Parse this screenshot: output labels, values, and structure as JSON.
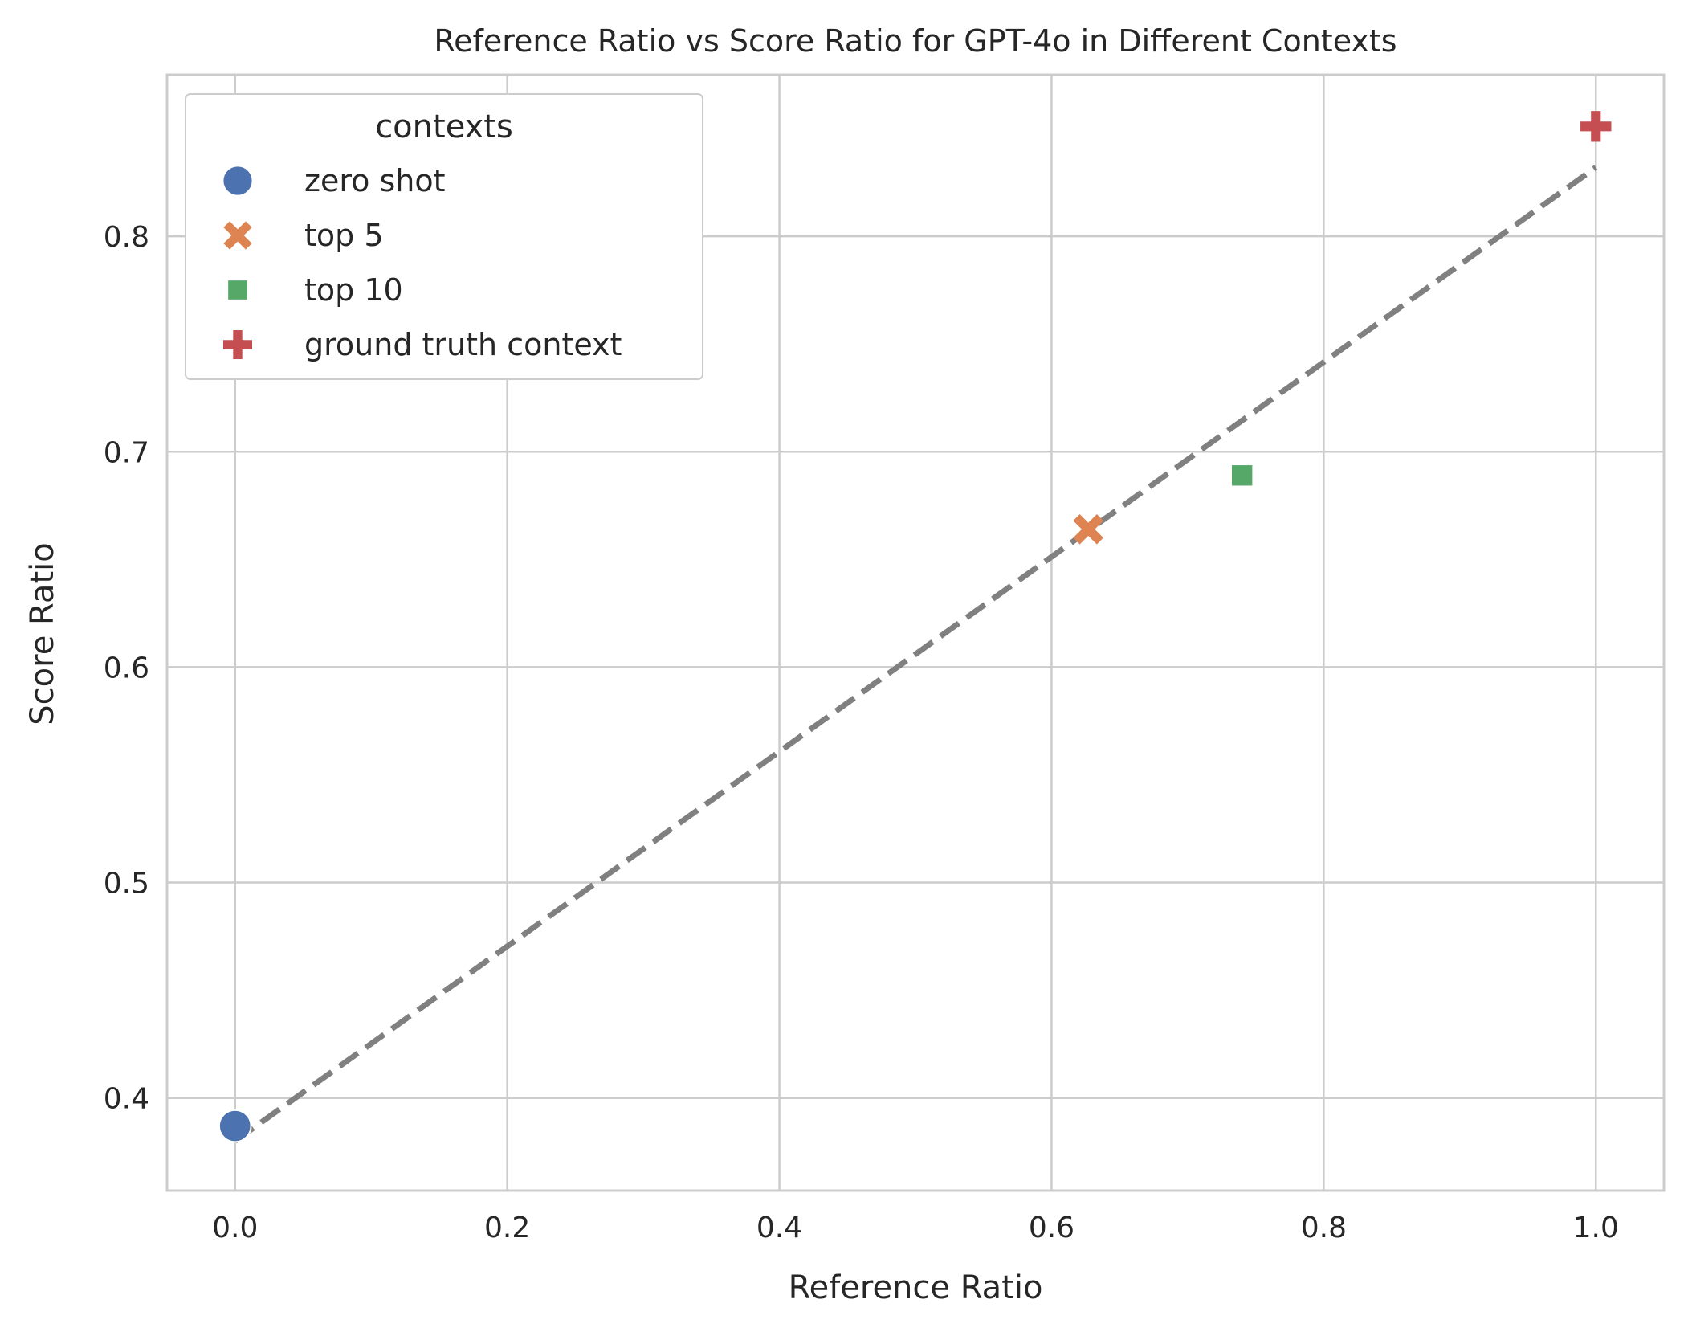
{
  "chart_data": {
    "type": "scatter",
    "title": "Reference Ratio vs Score Ratio for GPT-4o in Different Contexts",
    "xlabel": "Reference Ratio",
    "ylabel": "Score Ratio",
    "xlim": [
      -0.05,
      1.05
    ],
    "ylim": [
      0.357,
      0.875
    ],
    "xticks": [
      0.0,
      0.2,
      0.4,
      0.6,
      0.8,
      1.0
    ],
    "xtick_labels": [
      "0.0",
      "0.2",
      "0.4",
      "0.6",
      "0.8",
      "1.0"
    ],
    "yticks": [
      0.4,
      0.5,
      0.6,
      0.7,
      0.8
    ],
    "ytick_labels": [
      "0.4",
      "0.5",
      "0.6",
      "0.7",
      "0.8"
    ],
    "grid": true,
    "legend": {
      "title": "contexts",
      "placement": "top-left"
    },
    "series": [
      {
        "name": "zero shot",
        "marker": "circle",
        "color": "#4c72b0",
        "x": [
          0.0
        ],
        "y": [
          0.387
        ]
      },
      {
        "name": "top 5",
        "marker": "x",
        "color": "#dd8452",
        "x": [
          0.627
        ],
        "y": [
          0.664
        ]
      },
      {
        "name": "top 10",
        "marker": "square",
        "color": "#55a868",
        "x": [
          0.74
        ],
        "y": [
          0.689
        ]
      },
      {
        "name": "ground truth context",
        "marker": "plus",
        "color": "#c44e52",
        "x": [
          1.0
        ],
        "y": [
          0.851
        ]
      }
    ],
    "trendline": {
      "style": "dashed",
      "color": "#808080",
      "x": [
        0.0,
        1.0
      ],
      "y": [
        0.38,
        0.832
      ]
    }
  },
  "colors": {
    "grid": "#cccccc",
    "spine": "#cccccc",
    "text": "#262626",
    "legend_frame": "#cccccc"
  }
}
